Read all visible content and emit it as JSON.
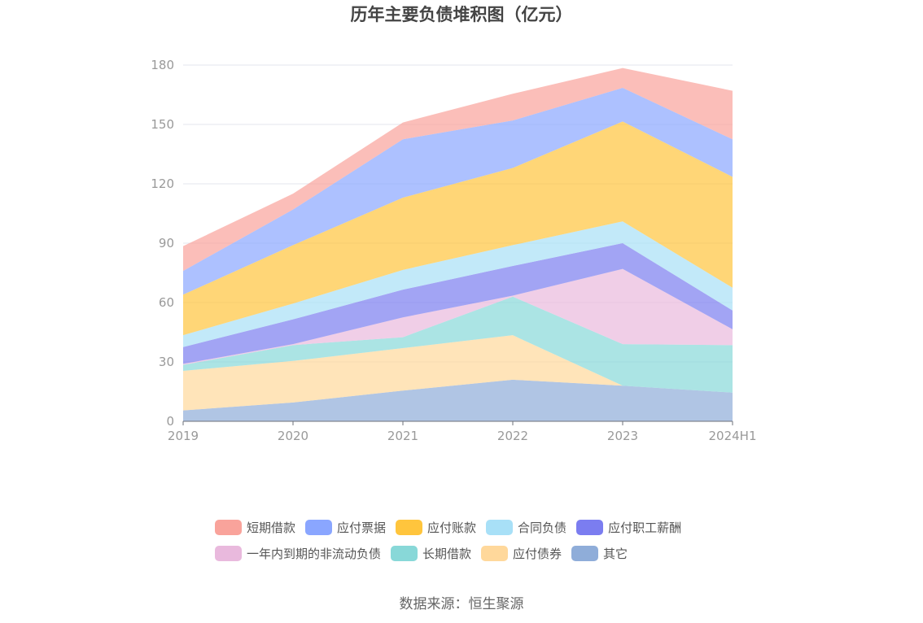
{
  "chart_data": {
    "type": "area",
    "stacked": true,
    "title": "历年主要负债堆积图（亿元）",
    "categories": [
      "2019",
      "2020",
      "2021",
      "2022",
      "2023",
      "2024H1"
    ],
    "ylim": [
      0,
      180
    ],
    "yticks": [
      0,
      30,
      60,
      90,
      120,
      150,
      180
    ],
    "grid": true,
    "legend_position": "bottom",
    "series": [
      {
        "name": "其它",
        "color": "#8fadd9",
        "values": [
          5.5,
          9.5,
          15.5,
          21,
          18,
          14.5
        ]
      },
      {
        "name": "应付债券",
        "color": "#ffd89b",
        "values": [
          20,
          21,
          21.5,
          22.5,
          0,
          0
        ]
      },
      {
        "name": "长期借款",
        "color": "#88d8d8",
        "values": [
          3,
          8,
          5.5,
          19.5,
          21,
          24
        ]
      },
      {
        "name": "一年内到期的非流动负债",
        "color": "#e9b9dd",
        "values": [
          0.5,
          0.5,
          10,
          0.5,
          38,
          8
        ]
      },
      {
        "name": "应付职工薪酬",
        "color": "#7b7df0",
        "values": [
          8.5,
          12.5,
          14,
          15,
          13,
          9.5
        ]
      },
      {
        "name": "合同负债",
        "color": "#a8e0f7",
        "values": [
          6,
          8,
          10,
          10.5,
          11,
          11.5
        ]
      },
      {
        "name": "应付账款",
        "color": "#ffc53d",
        "values": [
          20.5,
          29.5,
          36.5,
          39,
          50.5,
          56
        ]
      },
      {
        "name": "应付票据",
        "color": "#8aa6ff",
        "values": [
          12,
          18,
          29.5,
          24,
          17,
          19
        ]
      },
      {
        "name": "短期借款",
        "color": "#f9a39b",
        "values": [
          12.5,
          8,
          8.5,
          13.5,
          10,
          24.5
        ]
      }
    ],
    "legend_order": [
      "短期借款",
      "应付票据",
      "应付账款",
      "合同负债",
      "应付职工薪酬",
      "一年内到期的非流动负债",
      "长期借款",
      "应付债券",
      "其它"
    ]
  },
  "footer": {
    "source": "数据来源：恒生聚源"
  }
}
